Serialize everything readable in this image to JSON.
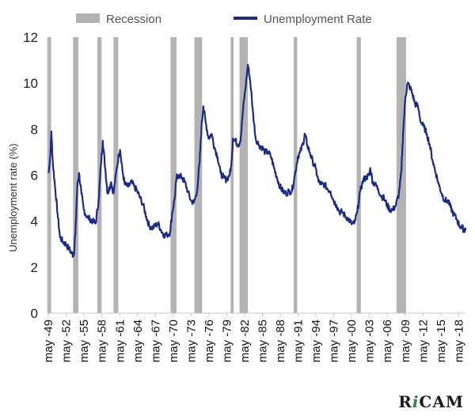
{
  "chart_data": {
    "type": "line",
    "title": "",
    "ylabel": "Unemployment rate (%)",
    "xlabel": "",
    "ylim": [
      0,
      12
    ],
    "yticks": [
      0,
      2,
      4,
      6,
      8,
      10,
      12
    ],
    "xlim": [
      1949.2,
      2019.5
    ],
    "legend": {
      "position": "top",
      "entries": [
        "Recession",
        "Unemployment Rate"
      ]
    },
    "colors": {
      "recession": "#b3b3b3",
      "line": "#1a2a86"
    },
    "xtick_labels": [
      "may -49",
      "may -52",
      "may -55",
      "may -58",
      "may -61",
      "may -64",
      "may -67",
      "may -70",
      "may -73",
      "may -76",
      "may -79",
      "may -82",
      "may -85",
      "may -88",
      "may -91",
      "may -94",
      "may -97",
      "may -00",
      "may -03",
      "may -06",
      "may -09",
      "may -12",
      "may -15",
      "may -18"
    ],
    "xtick_years": [
      1949,
      1952,
      1955,
      1958,
      1961,
      1964,
      1967,
      1970,
      1973,
      1976,
      1979,
      1982,
      1985,
      1988,
      1991,
      1994,
      1997,
      2000,
      2003,
      2006,
      2009,
      2012,
      2015,
      2018
    ],
    "recessions": [
      [
        1948.9,
        1949.8
      ],
      [
        1953.5,
        1954.4
      ],
      [
        1957.6,
        1958.3
      ],
      [
        1960.3,
        1961.1
      ],
      [
        1969.9,
        1970.9
      ],
      [
        1973.9,
        1975.2
      ],
      [
        1980.0,
        1980.5
      ],
      [
        1981.5,
        1982.9
      ],
      [
        1990.6,
        1991.2
      ],
      [
        2001.2,
        2001.9
      ],
      [
        2007.9,
        2009.5
      ]
    ],
    "series": [
      {
        "name": "Unemployment Rate",
        "points": [
          [
            1949.4,
            6.1
          ],
          [
            1949.7,
            7.0
          ],
          [
            1949.85,
            7.9
          ],
          [
            1950.1,
            6.5
          ],
          [
            1950.5,
            5.4
          ],
          [
            1950.9,
            4.3
          ],
          [
            1951.3,
            3.3
          ],
          [
            1951.8,
            3.1
          ],
          [
            1952.3,
            3.0
          ],
          [
            1952.8,
            2.8
          ],
          [
            1953.3,
            2.6
          ],
          [
            1953.6,
            2.5
          ],
          [
            1953.9,
            3.5
          ],
          [
            1954.2,
            5.5
          ],
          [
            1954.5,
            6.1
          ],
          [
            1954.9,
            5.2
          ],
          [
            1955.3,
            4.5
          ],
          [
            1955.8,
            4.2
          ],
          [
            1956.3,
            4.1
          ],
          [
            1956.8,
            4.0
          ],
          [
            1957.3,
            3.9
          ],
          [
            1957.8,
            4.9
          ],
          [
            1958.2,
            6.5
          ],
          [
            1958.5,
            7.5
          ],
          [
            1958.9,
            6.3
          ],
          [
            1959.3,
            5.2
          ],
          [
            1959.7,
            5.5
          ],
          [
            1959.9,
            5.7
          ],
          [
            1960.3,
            5.2
          ],
          [
            1960.8,
            6.2
          ],
          [
            1961.2,
            6.9
          ],
          [
            1961.4,
            7.1
          ],
          [
            1961.8,
            6.2
          ],
          [
            1962.2,
            5.6
          ],
          [
            1962.8,
            5.5
          ],
          [
            1963.3,
            5.7
          ],
          [
            1963.8,
            5.5
          ],
          [
            1964.3,
            5.3
          ],
          [
            1964.8,
            5.0
          ],
          [
            1965.3,
            4.7
          ],
          [
            1965.8,
            4.2
          ],
          [
            1966.3,
            3.8
          ],
          [
            1966.8,
            3.7
          ],
          [
            1967.3,
            3.8
          ],
          [
            1967.8,
            3.9
          ],
          [
            1968.3,
            3.6
          ],
          [
            1968.8,
            3.4
          ],
          [
            1969.3,
            3.4
          ],
          [
            1969.8,
            3.5
          ],
          [
            1970.2,
            4.4
          ],
          [
            1970.6,
            5.0
          ],
          [
            1970.9,
            5.9
          ],
          [
            1971.3,
            6.0
          ],
          [
            1971.8,
            5.9
          ],
          [
            1972.3,
            5.7
          ],
          [
            1972.8,
            5.3
          ],
          [
            1973.3,
            4.9
          ],
          [
            1973.8,
            4.8
          ],
          [
            1974.3,
            5.2
          ],
          [
            1974.8,
            6.6
          ],
          [
            1975.1,
            8.1
          ],
          [
            1975.4,
            9.0
          ],
          [
            1975.8,
            8.3
          ],
          [
            1976.3,
            7.6
          ],
          [
            1976.8,
            7.8
          ],
          [
            1977.3,
            7.2
          ],
          [
            1977.8,
            6.8
          ],
          [
            1978.3,
            6.1
          ],
          [
            1978.8,
            5.9
          ],
          [
            1979.3,
            5.8
          ],
          [
            1979.8,
            6.0
          ],
          [
            1980.1,
            6.4
          ],
          [
            1980.4,
            7.6
          ],
          [
            1980.8,
            7.5
          ],
          [
            1981.3,
            7.3
          ],
          [
            1981.7,
            7.6
          ],
          [
            1982.1,
            8.9
          ],
          [
            1982.5,
            9.8
          ],
          [
            1982.9,
            10.8
          ],
          [
            1983.3,
            10.1
          ],
          [
            1983.8,
            8.6
          ],
          [
            1984.2,
            7.6
          ],
          [
            1984.8,
            7.3
          ],
          [
            1985.3,
            7.2
          ],
          [
            1985.8,
            7.0
          ],
          [
            1986.3,
            7.0
          ],
          [
            1986.8,
            6.8
          ],
          [
            1987.3,
            6.3
          ],
          [
            1987.8,
            5.9
          ],
          [
            1988.3,
            5.5
          ],
          [
            1988.8,
            5.3
          ],
          [
            1989.3,
            5.2
          ],
          [
            1989.8,
            5.3
          ],
          [
            1990.3,
            5.3
          ],
          [
            1990.8,
            6.0
          ],
          [
            1991.3,
            6.8
          ],
          [
            1991.7,
            7.0
          ],
          [
            1992.2,
            7.4
          ],
          [
            1992.5,
            7.8
          ],
          [
            1992.9,
            7.3
          ],
          [
            1993.3,
            7.0
          ],
          [
            1993.8,
            6.6
          ],
          [
            1994.3,
            6.3
          ],
          [
            1994.8,
            5.7
          ],
          [
            1995.3,
            5.6
          ],
          [
            1995.8,
            5.6
          ],
          [
            1996.3,
            5.4
          ],
          [
            1996.8,
            5.3
          ],
          [
            1997.3,
            4.9
          ],
          [
            1997.8,
            4.7
          ],
          [
            1998.3,
            4.4
          ],
          [
            1998.8,
            4.4
          ],
          [
            1999.3,
            4.2
          ],
          [
            1999.8,
            4.1
          ],
          [
            2000.3,
            3.9
          ],
          [
            2000.8,
            3.9
          ],
          [
            2001.3,
            4.4
          ],
          [
            2001.8,
            5.3
          ],
          [
            2002.3,
            5.8
          ],
          [
            2002.8,
            5.9
          ],
          [
            2003.3,
            6.0
          ],
          [
            2003.5,
            6.3
          ],
          [
            2003.9,
            5.7
          ],
          [
            2004.3,
            5.6
          ],
          [
            2004.8,
            5.4
          ],
          [
            2005.3,
            5.1
          ],
          [
            2005.8,
            5.0
          ],
          [
            2006.3,
            4.7
          ],
          [
            2006.8,
            4.5
          ],
          [
            2007.3,
            4.5
          ],
          [
            2007.8,
            4.7
          ],
          [
            2008.3,
            5.2
          ],
          [
            2008.7,
            6.1
          ],
          [
            2009.0,
            7.8
          ],
          [
            2009.4,
            9.4
          ],
          [
            2009.75,
            10.0
          ],
          [
            2010.2,
            9.8
          ],
          [
            2010.6,
            9.5
          ],
          [
            2011.0,
            9.1
          ],
          [
            2011.5,
            9.0
          ],
          [
            2012.0,
            8.3
          ],
          [
            2012.5,
            8.1
          ],
          [
            2013.0,
            7.8
          ],
          [
            2013.5,
            7.3
          ],
          [
            2014.0,
            6.6
          ],
          [
            2014.5,
            6.1
          ],
          [
            2015.0,
            5.6
          ],
          [
            2015.5,
            5.2
          ],
          [
            2016.0,
            4.9
          ],
          [
            2016.5,
            4.9
          ],
          [
            2017.0,
            4.6
          ],
          [
            2017.5,
            4.3
          ],
          [
            2018.0,
            4.1
          ],
          [
            2018.5,
            3.8
          ],
          [
            2019.0,
            3.7
          ],
          [
            2019.3,
            3.6
          ],
          [
            2019.5,
            3.7
          ]
        ]
      }
    ]
  },
  "logo_text": "RiCAM"
}
